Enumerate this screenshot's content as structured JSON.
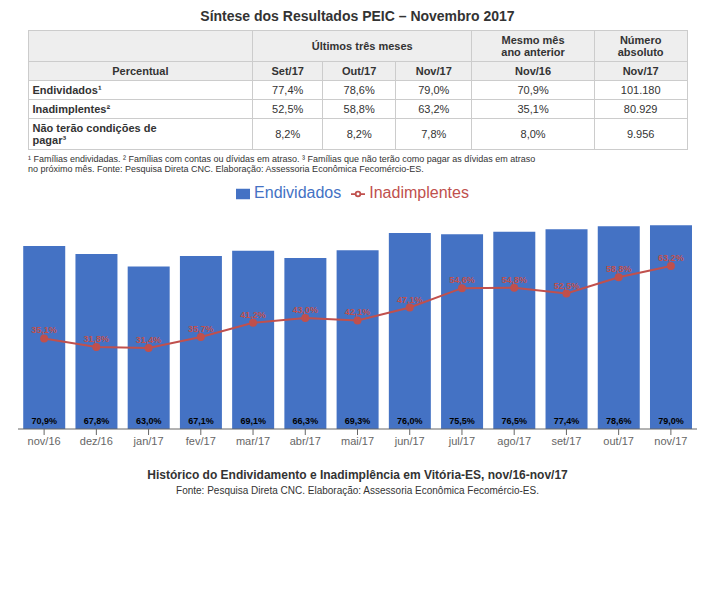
{
  "chart_data": {
    "type": "bar",
    "title": "Histórico do Endividamento e Inadimplência em Vitória-ES, nov/16-nov/17",
    "categories": [
      "nov/16",
      "dez/16",
      "jan/17",
      "fev/17",
      "mar/17",
      "abr/17",
      "mai/17",
      "jun/17",
      "jul/17",
      "ago/17",
      "set/17",
      "out/17",
      "nov/17"
    ],
    "series": [
      {
        "name": "Endividados",
        "type": "bar",
        "color": "#4472C4",
        "values": [
          70.9,
          67.8,
          63.0,
          67.1,
          69.1,
          66.3,
          69.3,
          76.0,
          75.5,
          76.5,
          77.4,
          78.6,
          79.0
        ],
        "value_labels": [
          "70,9%",
          "67,8%",
          "63,0%",
          "67,1%",
          "69,1%",
          "66,3%",
          "69,3%",
          "76,0%",
          "75,5%",
          "76,5%",
          "77,4%",
          "78,6%",
          "79,0%"
        ]
      },
      {
        "name": "Inadimplentes",
        "type": "line",
        "color": "#C0504D",
        "marker": "o",
        "values": [
          35.1,
          31.8,
          31.4,
          35.7,
          41.2,
          43.0,
          42.1,
          47.1,
          54.6,
          54.8,
          52.5,
          58.8,
          63.2
        ],
        "value_labels": [
          "35,1%",
          "31,8%",
          "31,4%",
          "35,7%",
          "41,2%",
          "43,0%",
          "42,1%",
          "47,1%",
          "54,6%",
          "54,8%",
          "52,5%",
          "58,8%",
          "63,2%"
        ]
      }
    ],
    "ylim": [
      0,
      88
    ],
    "data_labels": true,
    "tick_labels": "x",
    "grid": false,
    "legend": "top",
    "annotations": [
      "Síntese dos Resultados PEIC – Novembro 2017",
      "Últimos três meses",
      "Mesmo mês\nano anterior",
      "Número\nabsoluto",
      "Percentual",
      "Set/17",
      "Out/17",
      "Nov/17",
      "Nov/16",
      "Nov/17",
      "Endividados¹",
      "77,4%",
      "78,6%",
      "79,0%",
      "70,9%",
      "101.180",
      "Inadimplentes²",
      "52,5%",
      "58,8%",
      "63,2%",
      "35,1%",
      "80.929",
      "Não terão condições de\npagar³",
      "8,2%",
      "8,2%",
      "7,8%",
      "8,0%",
      "9.956",
      "¹ Famílias endividadas.  ² Famílias com contas ou dívidas em atraso.  ³ Famílias que não terão como pagar as dívidas em atraso\nno próximo mês. Fonte: Pesquisa Direta CNC.  Elaboração: Assessoria Econômica Fecomércio-ES.",
      "Fonte: Pesquisa Direta CNC.  Elaboração: Assessoria Econômica Fecomércio-ES."
    ]
  }
}
